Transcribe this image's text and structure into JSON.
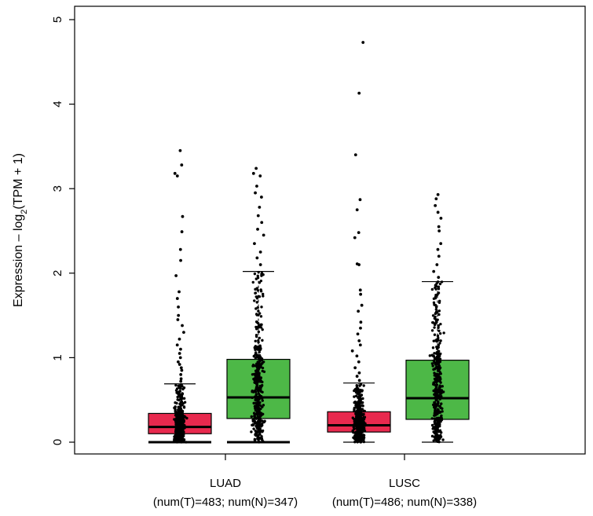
{
  "chart_data": {
    "type": "box",
    "title": "",
    "ylabel": "Expression – log2(TPM + 1)",
    "ylabel_parts": {
      "prefix": "Expression – log",
      "sub": "2",
      "suffix": "(TPM + 1)"
    },
    "ylim": [
      0,
      5
    ],
    "yticks": [
      0,
      1,
      2,
      3,
      4,
      5
    ],
    "grid": false,
    "legend": "none",
    "colors": {
      "tumor": "#e8294e",
      "normal": "#4db847",
      "points": "#000000"
    },
    "categories": [
      {
        "name": "LUAD",
        "counts_label": "(num(T)=483; num(N)=347)",
        "boxes": [
          {
            "group": "T",
            "color": "#e8294e",
            "q1": 0.1,
            "median": 0.18,
            "q3": 0.34,
            "whisker_low": 0.0,
            "whisker_high": 0.69,
            "outliers": [
              0.72,
              0.75,
              0.8,
              0.85,
              0.88,
              0.92,
              0.95,
              1.0,
              1.05,
              1.1,
              1.15,
              1.22,
              1.3,
              1.38,
              1.45,
              1.5,
              1.6,
              1.7,
              1.78,
              1.97,
              2.15,
              2.28,
              2.49,
              2.67,
              3.15,
              3.18,
              3.28,
              3.45
            ]
          },
          {
            "group": "N",
            "color": "#4db847",
            "q1": 0.28,
            "median": 0.53,
            "q3": 0.98,
            "whisker_low": 0.0,
            "whisker_high": 2.02,
            "outliers": [
              2.1,
              2.18,
              2.25,
              2.35,
              2.45,
              2.52,
              2.6,
              2.68,
              2.78,
              2.9,
              2.95,
              3.03,
              3.15,
              3.18,
              3.24
            ]
          }
        ]
      },
      {
        "name": "LUSC",
        "counts_label": "(num(T)=486; num(N)=338)",
        "boxes": [
          {
            "group": "T",
            "color": "#e8294e",
            "q1": 0.12,
            "median": 0.2,
            "q3": 0.36,
            "whisker_low": 0.0,
            "whisker_high": 0.7,
            "outliers": [
              0.73,
              0.78,
              0.82,
              0.88,
              0.95,
              1.02,
              1.08,
              1.15,
              1.2,
              1.28,
              1.35,
              1.42,
              1.55,
              1.62,
              1.75,
              1.8,
              2.1,
              2.11,
              2.42,
              2.48,
              2.75,
              2.87,
              3.4,
              4.13,
              4.73
            ]
          },
          {
            "group": "N",
            "color": "#4db847",
            "q1": 0.27,
            "median": 0.52,
            "q3": 0.97,
            "whisker_low": 0.0,
            "whisker_high": 1.9,
            "outliers": [
              1.95,
              2.02,
              2.1,
              2.2,
              2.28,
              2.35,
              2.5,
              2.55,
              2.65,
              2.72,
              2.8,
              2.88,
              2.93
            ]
          }
        ]
      }
    ]
  }
}
